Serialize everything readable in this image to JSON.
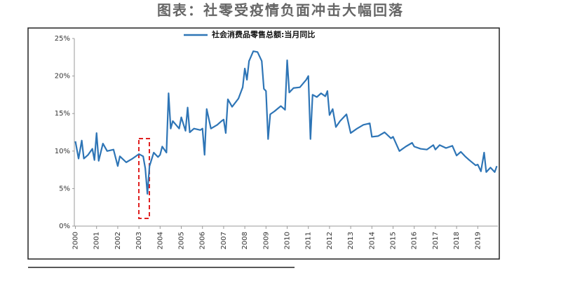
{
  "chart_data": {
    "type": "line",
    "title": "图表：社零受疫情负面冲击大幅回落",
    "series": [
      {
        "name": "社会消费品零售总额:当月同比",
        "color": "#2e75b6",
        "x": [
          2000.0,
          2000.15,
          2000.3,
          2000.4,
          2000.6,
          2000.8,
          2000.9,
          2001.0,
          2001.1,
          2001.3,
          2001.5,
          2001.8,
          2002.0,
          2002.1,
          2002.4,
          2002.7,
          2003.0,
          2003.2,
          2003.3,
          2003.4,
          2003.5,
          2003.7,
          2003.9,
          2004.0,
          2004.1,
          2004.3,
          2004.4,
          2004.5,
          2004.6,
          2004.9,
          2005.0,
          2005.2,
          2005.3,
          2005.4,
          2005.6,
          2005.9,
          2006.0,
          2006.1,
          2006.2,
          2006.4,
          2006.7,
          2006.9,
          2007.0,
          2007.1,
          2007.2,
          2007.4,
          2007.7,
          2007.9,
          2008.0,
          2008.1,
          2008.2,
          2008.4,
          2008.6,
          2008.8,
          2008.9,
          2009.0,
          2009.1,
          2009.2,
          2009.4,
          2009.7,
          2009.9,
          2010.0,
          2010.1,
          2010.3,
          2010.6,
          2010.9,
          2011.0,
          2011.1,
          2011.2,
          2011.4,
          2011.6,
          2011.8,
          2011.9,
          2012.0,
          2012.15,
          2012.3,
          2012.5,
          2012.8,
          2013.0,
          2013.3,
          2013.6,
          2013.9,
          2014.0,
          2014.3,
          2014.6,
          2014.9,
          2015.0,
          2015.3,
          2015.6,
          2015.9,
          2016.0,
          2016.3,
          2016.6,
          2016.9,
          2017.0,
          2017.2,
          2017.5,
          2017.8,
          2018.0,
          2018.2,
          2018.4,
          2018.6,
          2018.9,
          2019.0,
          2019.15,
          2019.3,
          2019.4,
          2019.6,
          2019.8,
          2019.9
        ],
        "values": [
          11.3,
          9.0,
          11.4,
          9.0,
          9.5,
          10.3,
          8.8,
          12.4,
          8.7,
          11.0,
          10.0,
          10.2,
          8.0,
          9.3,
          8.5,
          9.0,
          9.6,
          9.3,
          7.7,
          4.3,
          8.0,
          9.8,
          9.2,
          9.5,
          10.6,
          9.8,
          17.7,
          13.0,
          14.0,
          13.0,
          14.5,
          12.7,
          15.8,
          12.5,
          13.0,
          12.8,
          13.0,
          9.5,
          15.6,
          13.0,
          13.5,
          14.0,
          14.2,
          12.4,
          16.9,
          15.9,
          17.0,
          18.5,
          21.0,
          19.5,
          22.0,
          23.3,
          23.2,
          22.0,
          18.3,
          18.0,
          11.6,
          14.9,
          15.3,
          16.0,
          15.5,
          22.1,
          17.8,
          18.4,
          18.5,
          19.5,
          20.0,
          11.6,
          17.5,
          17.2,
          17.7,
          17.3,
          18.0,
          14.8,
          15.6,
          13.2,
          14.0,
          14.9,
          12.4,
          13.0,
          13.5,
          13.7,
          11.9,
          12.0,
          12.5,
          11.7,
          11.9,
          10.0,
          10.6,
          11.1,
          10.6,
          10.3,
          10.2,
          10.8,
          10.2,
          10.8,
          10.4,
          10.7,
          9.4,
          9.9,
          9.3,
          8.8,
          8.1,
          8.2,
          7.3,
          9.8,
          7.2,
          7.8,
          7.2,
          8.0
        ]
      }
    ],
    "xlim": [
      1999.95,
      2019.95
    ],
    "xticks": [
      2000,
      2001,
      2002,
      2003,
      2004,
      2005,
      2006,
      2007,
      2008,
      2009,
      2010,
      2011,
      2012,
      2013,
      2014,
      2015,
      2016,
      2017,
      2018,
      2019
    ],
    "ylim": [
      0,
      25
    ],
    "yticks": [
      {
        "value": 0,
        "label": "0%"
      },
      {
        "value": 5,
        "label": "5%"
      },
      {
        "value": 10,
        "label": "10%"
      },
      {
        "value": 15,
        "label": "15%"
      },
      {
        "value": 20,
        "label": "20%"
      },
      {
        "value": 25,
        "label": "25%"
      }
    ]
  }
}
